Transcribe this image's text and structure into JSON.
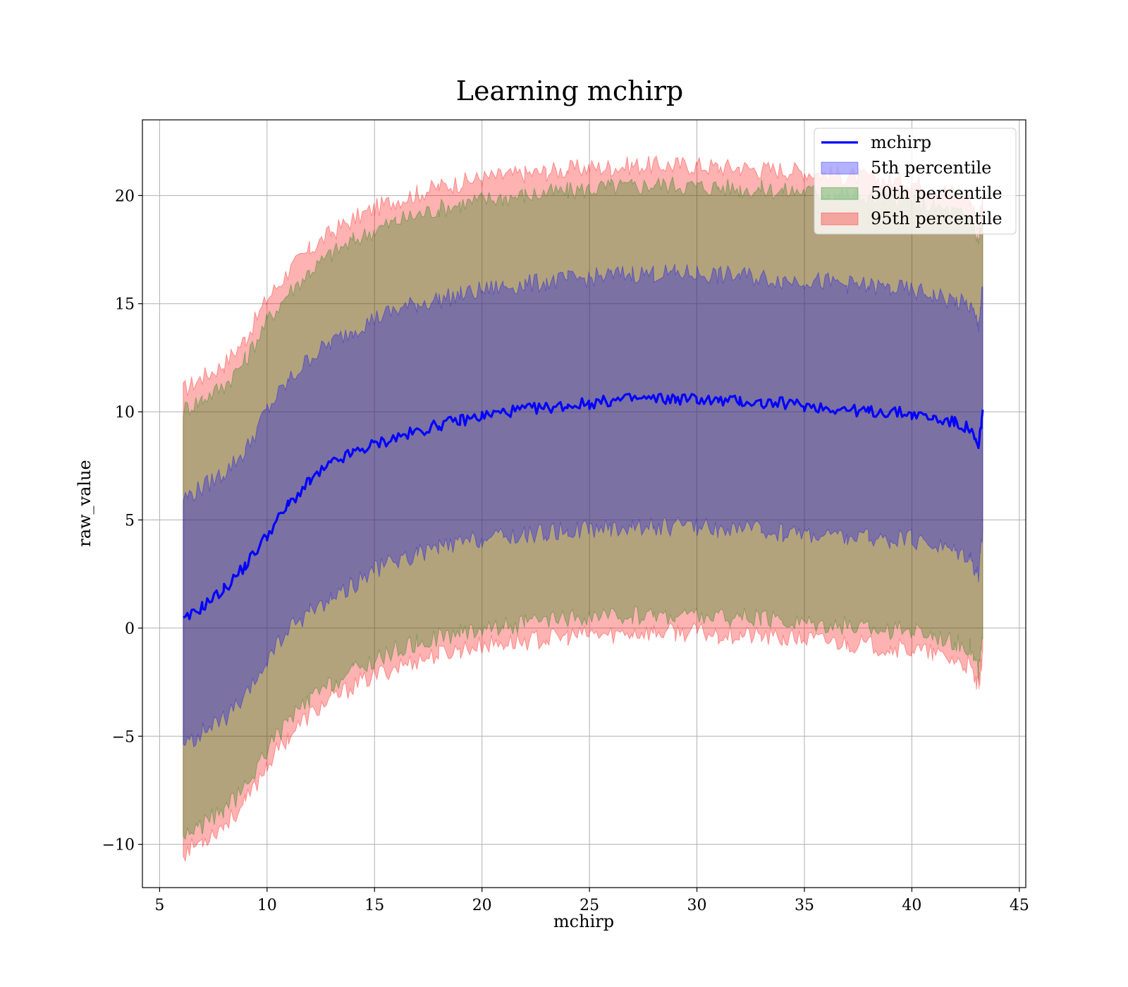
{
  "chart_data": {
    "type": "area",
    "title": "Learning mchirp",
    "xlabel": "mchirp",
    "ylabel": "raw_value",
    "xlim": [
      4.2,
      45.3
    ],
    "ylim": [
      -12,
      23.5
    ],
    "xticks": [
      5,
      10,
      15,
      20,
      25,
      30,
      35,
      40,
      45
    ],
    "yticks": [
      -10,
      -5,
      0,
      5,
      10,
      15,
      20
    ],
    "xtick_labels": [
      "5",
      "10",
      "15",
      "20",
      "25",
      "30",
      "35",
      "40",
      "45"
    ],
    "ytick_labels": [
      "−10",
      "−5",
      "0",
      "5",
      "10",
      "15",
      "20"
    ],
    "grid": true,
    "legend_position": "top-right",
    "x": [
      6.1,
      7,
      8,
      9,
      10,
      11,
      12,
      13,
      14,
      15,
      16,
      17,
      18,
      19,
      20,
      21,
      22,
      23,
      24,
      25,
      26,
      27,
      28,
      29,
      30,
      31,
      32,
      33,
      34,
      35,
      36,
      37,
      38,
      39,
      40,
      41,
      42,
      42.7,
      43.1,
      43.3
    ],
    "series": [
      {
        "name": "mchirp",
        "kind": "line",
        "color": "#0000ff",
        "values": [
          0.3,
          1.0,
          1.8,
          2.9,
          4.3,
          5.7,
          6.8,
          7.6,
          8.1,
          8.5,
          8.8,
          9.1,
          9.4,
          9.6,
          9.8,
          10.0,
          10.1,
          10.2,
          10.3,
          10.4,
          10.5,
          10.6,
          10.6,
          10.6,
          10.6,
          10.5,
          10.5,
          10.4,
          10.4,
          10.3,
          10.2,
          10.1,
          10.0,
          10.0,
          9.9,
          9.7,
          9.5,
          9.2,
          8.3,
          10.1
        ]
      },
      {
        "name": "5th percentile",
        "kind": "band",
        "color": "#0000ff",
        "lower": [
          -5.5,
          -4.8,
          -4.2,
          -3.3,
          -1.5,
          -0.1,
          0.8,
          1.4,
          2.0,
          2.7,
          3.1,
          3.4,
          3.7,
          3.9,
          4.1,
          4.2,
          4.3,
          4.4,
          4.5,
          4.6,
          4.6,
          4.7,
          4.7,
          4.7,
          4.7,
          4.6,
          4.6,
          4.5,
          4.4,
          4.4,
          4.3,
          4.2,
          4.2,
          4.1,
          4.1,
          3.9,
          3.6,
          3.4,
          2.4,
          4.5
        ],
        "upper": [
          6.0,
          6.5,
          7.2,
          8.2,
          10.1,
          11.4,
          12.5,
          13.2,
          13.8,
          14.3,
          14.7,
          15.0,
          15.2,
          15.4,
          15.6,
          15.8,
          15.9,
          16.0,
          16.1,
          16.2,
          16.3,
          16.4,
          16.4,
          16.4,
          16.4,
          16.3,
          16.3,
          16.2,
          16.1,
          16.1,
          16.0,
          15.9,
          15.8,
          15.7,
          15.6,
          15.4,
          15.1,
          14.9,
          14.0,
          15.8
        ]
      },
      {
        "name": "50th percentile",
        "kind": "band",
        "color": "#008000",
        "lower": [
          -9.6,
          -9.1,
          -8.4,
          -7.4,
          -5.6,
          -4.3,
          -3.3,
          -2.6,
          -2.0,
          -1.5,
          -1.0,
          -0.7,
          -0.4,
          -0.2,
          0.0,
          0.1,
          0.2,
          0.3,
          0.4,
          0.5,
          0.5,
          0.6,
          0.6,
          0.6,
          0.6,
          0.5,
          0.5,
          0.4,
          0.3,
          0.3,
          0.2,
          0.1,
          0.0,
          -0.1,
          -0.1,
          -0.3,
          -0.6,
          -0.9,
          -2.0,
          -0.5
        ],
        "upper": [
          10.1,
          10.6,
          11.2,
          12.4,
          14.2,
          15.5,
          16.5,
          17.3,
          17.9,
          18.4,
          18.8,
          19.1,
          19.4,
          19.6,
          19.8,
          19.9,
          20.0,
          20.1,
          20.2,
          20.3,
          20.4,
          20.4,
          20.5,
          20.5,
          20.4,
          20.4,
          20.3,
          20.3,
          20.2,
          20.2,
          20.1,
          20.0,
          19.9,
          19.8,
          19.7,
          19.5,
          19.2,
          19.0,
          17.8,
          19.0
        ]
      },
      {
        "name": "95th percentile",
        "kind": "band",
        "color": "#ff0000",
        "lower": [
          -10.4,
          -9.8,
          -9.1,
          -8.1,
          -6.3,
          -5.0,
          -4.0,
          -3.3,
          -2.7,
          -2.2,
          -1.8,
          -1.5,
          -1.2,
          -1.0,
          -0.8,
          -0.7,
          -0.6,
          -0.5,
          -0.4,
          -0.3,
          -0.3,
          -0.2,
          -0.2,
          -0.2,
          -0.2,
          -0.3,
          -0.3,
          -0.4,
          -0.5,
          -0.5,
          -0.6,
          -0.7,
          -0.8,
          -0.9,
          -1.0,
          -1.2,
          -1.5,
          -1.8,
          -2.8,
          -1.0
        ],
        "upper": [
          11.0,
          11.6,
          12.2,
          13.4,
          15.2,
          16.5,
          17.5,
          18.3,
          18.9,
          19.4,
          19.8,
          20.1,
          20.4,
          20.6,
          20.8,
          20.9,
          21.0,
          21.1,
          21.2,
          21.3,
          21.3,
          21.4,
          21.4,
          21.4,
          21.4,
          21.3,
          21.3,
          21.2,
          21.2,
          21.1,
          21.0,
          20.9,
          20.8,
          20.7,
          20.6,
          20.4,
          20.1,
          19.9,
          18.6,
          19.8
        ]
      }
    ]
  }
}
